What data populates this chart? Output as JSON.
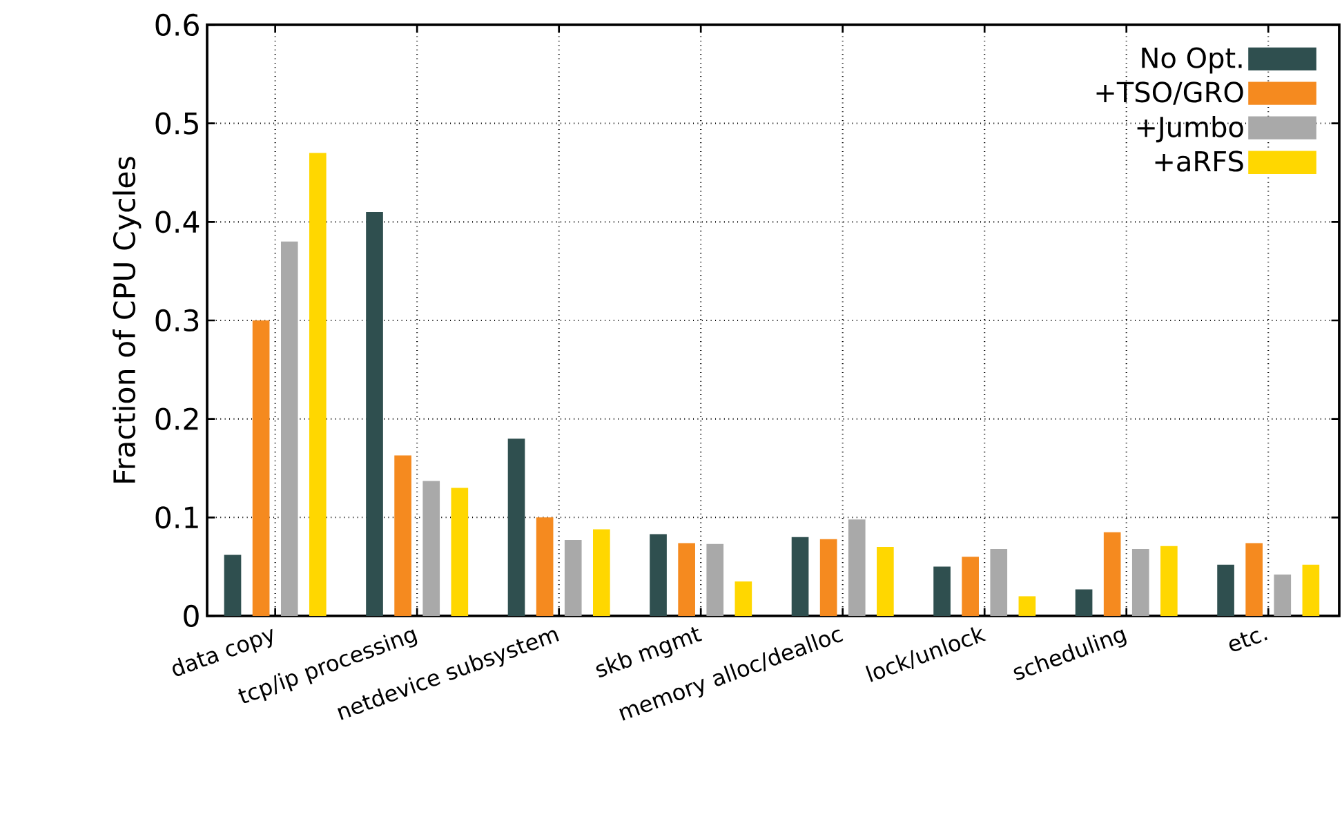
{
  "chart_data": {
    "type": "bar",
    "ylabel": "Fraction of CPU Cycles",
    "categories": [
      "data copy",
      "tcp/ip processing",
      "netdevice subsystem",
      "skb mgmt",
      "memory alloc/dealloc",
      "lock/unlock",
      "scheduling",
      "etc."
    ],
    "series": [
      {
        "name": "No Opt.",
        "color": "#2f4f4f",
        "values": [
          0.062,
          0.41,
          0.18,
          0.083,
          0.08,
          0.05,
          0.027,
          0.052
        ]
      },
      {
        "name": "+TSO/GRO",
        "color": "#f58a1f",
        "values": [
          0.3,
          0.163,
          0.1,
          0.074,
          0.078,
          0.06,
          0.085,
          0.074
        ]
      },
      {
        "name": "+Jumbo",
        "color": "#a9a9a9",
        "values": [
          0.38,
          0.137,
          0.077,
          0.073,
          0.098,
          0.068,
          0.068,
          0.042
        ]
      },
      {
        "name": "+aRFS",
        "color": "#ffd700",
        "values": [
          0.47,
          0.13,
          0.088,
          0.035,
          0.07,
          0.02,
          0.071,
          0.052
        ]
      }
    ],
    "ylim": [
      0,
      0.6
    ],
    "yticks": [
      0,
      0.1,
      0.2,
      0.3,
      0.4,
      0.5,
      0.6
    ],
    "grid": true,
    "legend": "top right"
  }
}
